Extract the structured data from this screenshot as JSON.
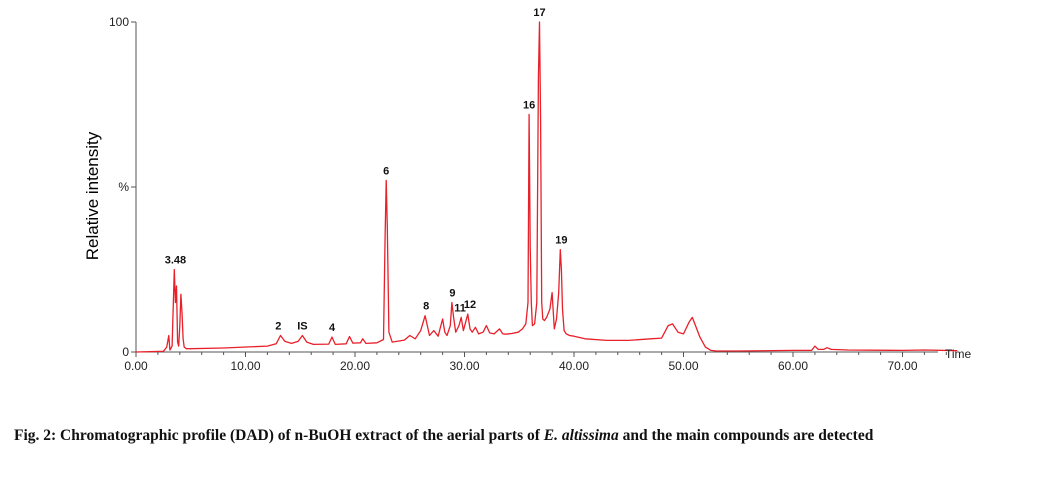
{
  "chart_data": {
    "type": "line",
    "xlabel": "Time",
    "ylabel": "Relative intensity",
    "xlim": [
      0,
      75
    ],
    "ylim": [
      0,
      100
    ],
    "x_ticks": [
      "0.00",
      "10.00",
      "20.00",
      "30.00",
      "40.00",
      "50.00",
      "60.00",
      "70.00"
    ],
    "x_tick_values": [
      0,
      10,
      20,
      30,
      40,
      50,
      60,
      70
    ],
    "y_ticks": [
      "0",
      "%",
      "100"
    ],
    "y_tick_values": [
      0,
      50,
      100
    ],
    "grid": false,
    "line_color": "#e8202a",
    "series": [
      {
        "x": [
          0,
          2.5,
          2.8,
          3.0,
          3.1,
          3.3,
          3.5,
          3.6,
          3.7,
          3.8,
          3.9,
          4.0,
          4.1,
          4.2,
          4.3,
          4.4,
          4.6,
          5.0,
          8.0,
          12.0,
          12.8,
          13.2,
          13.6,
          14.2,
          14.8,
          15.2,
          15.6,
          16.2,
          17.6,
          17.9,
          18.2,
          19.2,
          19.5,
          19.8,
          20.5,
          20.7,
          21.0,
          22.0,
          22.6,
          22.75,
          22.85,
          22.95,
          23.1,
          23.4,
          24.5,
          25.0,
          25.5,
          26.0,
          26.4,
          26.6,
          26.8,
          27.2,
          27.6,
          27.8,
          28.0,
          28.2,
          28.4,
          28.7,
          28.85,
          29.0,
          29.2,
          29.5,
          29.7,
          29.9,
          30.1,
          30.3,
          30.5,
          30.7,
          31.0,
          31.3,
          31.7,
          32.0,
          32.3,
          32.7,
          33.2,
          33.5,
          33.8,
          34.3,
          34.9,
          35.3,
          35.6,
          35.8,
          35.9,
          36.0,
          36.1,
          36.2,
          36.4,
          36.6,
          36.75,
          36.85,
          36.95,
          37.05,
          37.15,
          37.3,
          37.5,
          37.8,
          38.0,
          38.2,
          38.4,
          38.6,
          38.75,
          38.85,
          38.95,
          39.1,
          39.3,
          39.6,
          40.0,
          41.0,
          43.0,
          45.0,
          47.0,
          48.0,
          48.6,
          49.0,
          49.5,
          50.0,
          50.5,
          50.8,
          51.1,
          51.5,
          52.0,
          52.5,
          53.0,
          55.0,
          60.0,
          61.7,
          62.0,
          62.3,
          62.8,
          63.1,
          63.5,
          65.0,
          70.0,
          72.0,
          75.0
        ],
        "y": [
          0,
          0.2,
          1.5,
          5.0,
          0.6,
          1.8,
          25.0,
          15.0,
          20.0,
          3.0,
          1.8,
          8.0,
          17.5,
          12.0,
          4.0,
          1.5,
          1.0,
          1.0,
          1.2,
          1.8,
          2.5,
          5.0,
          3.2,
          2.6,
          3.2,
          5.0,
          3.0,
          2.3,
          2.4,
          4.5,
          2.3,
          2.5,
          4.7,
          2.7,
          2.8,
          4.0,
          2.6,
          2.8,
          3.8,
          35.0,
          52.0,
          38.0,
          6.0,
          3.0,
          3.6,
          5.0,
          4.0,
          6.5,
          11.0,
          8.0,
          5.0,
          6.5,
          4.8,
          7.5,
          10.0,
          6.0,
          5.0,
          8.0,
          15.0,
          10.5,
          6.0,
          8.0,
          10.5,
          6.5,
          9.0,
          11.5,
          7.0,
          6.0,
          7.5,
          5.5,
          6.0,
          8.0,
          5.8,
          5.5,
          7.0,
          5.5,
          5.4,
          5.6,
          6.0,
          7.0,
          8.5,
          15.0,
          72.0,
          32.0,
          15.0,
          8.0,
          8.5,
          15.0,
          83.0,
          100.0,
          70.0,
          15.0,
          10.0,
          9.5,
          10.5,
          13.0,
          18.0,
          7.0,
          10.0,
          18.0,
          31.0,
          25.0,
          13.0,
          6.5,
          5.5,
          5.0,
          4.8,
          4.0,
          3.5,
          3.5,
          4.0,
          4.2,
          8.0,
          8.5,
          6.0,
          5.5,
          9.0,
          10.5,
          8.0,
          4.5,
          1.5,
          0.5,
          0.3,
          0.3,
          0.5,
          0.5,
          1.8,
          0.8,
          0.8,
          1.3,
          0.8,
          0.6,
          0.5,
          0.6,
          0.4
        ]
      }
    ],
    "peak_labels": [
      {
        "text": "3.48",
        "x": 3.6,
        "y": 25.0
      },
      {
        "text": "2",
        "x": 13.0,
        "y": 5.0
      },
      {
        "text": "IS",
        "x": 15.2,
        "y": 5.0
      },
      {
        "text": "4",
        "x": 17.9,
        "y": 4.5
      },
      {
        "text": "6",
        "x": 22.85,
        "y": 52.0
      },
      {
        "text": "8",
        "x": 26.5,
        "y": 11.0
      },
      {
        "text": "9",
        "x": 28.9,
        "y": 15.0
      },
      {
        "text": "11",
        "x": 29.6,
        "y": 10.5
      },
      {
        "text": "12",
        "x": 30.5,
        "y": 11.5
      },
      {
        "text": "16",
        "x": 35.9,
        "y": 72.0
      },
      {
        "text": "17",
        "x": 36.85,
        "y": 100.0
      },
      {
        "text": "19",
        "x": 38.85,
        "y": 31.0
      }
    ]
  },
  "caption": {
    "prefix": "Fig. 2: Chromatographic profile (DAD) of n-BuOH extract of the aerial parts of ",
    "species": "E. altissima",
    "suffix": " and the main compounds are detected"
  }
}
